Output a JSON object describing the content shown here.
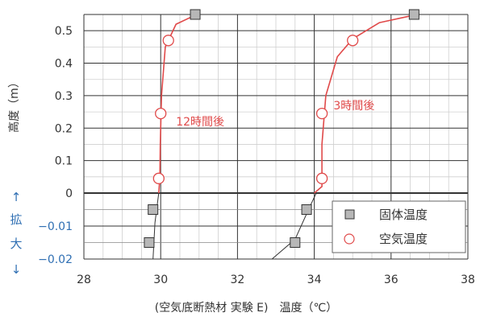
{
  "chart_data": {
    "type": "scatter",
    "title": "",
    "xlabel": "(空気底断熱材 実験 E)　温度（℃）",
    "ylabel": "高度（m）",
    "xlim": [
      28,
      38
    ],
    "ylim": [
      -0.02,
      0.55
    ],
    "x_ticks": [
      "28",
      "30",
      "32",
      "34",
      "36",
      "38"
    ],
    "y_ticks": [
      {
        "v": 0.5,
        "label": "0.5"
      },
      {
        "v": 0.4,
        "label": "0.4"
      },
      {
        "v": 0.3,
        "label": "0.3"
      },
      {
        "v": 0.2,
        "label": "0.2"
      },
      {
        "v": 0.1,
        "label": "0.1"
      },
      {
        "v": 0,
        "label": "0"
      },
      {
        "v": -0.01,
        "label": "−0.01"
      },
      {
        "v": -0.02,
        "label": "−0.02"
      }
    ],
    "expand_label": "拡大",
    "expand_up_arrow": "↑",
    "expand_down_arrow": "↓",
    "legend": {
      "position": "bottom-right",
      "solid": "固体温度",
      "air": "空気温度"
    },
    "series": [
      {
        "name": "固体温度",
        "points": [
          [
            29.8,
            -0.005
          ],
          [
            29.7,
            -0.015
          ],
          [
            30.9,
            0.55
          ],
          [
            33.5,
            -0.015
          ],
          [
            33.8,
            -0.005
          ],
          [
            36.6,
            0.55
          ]
        ]
      },
      {
        "name": "空気温度",
        "points": [
          [
            30.2,
            0.47
          ],
          [
            30.0,
            0.245
          ],
          [
            29.95,
            0.045
          ],
          [
            35.0,
            0.47
          ],
          [
            34.2,
            0.245
          ],
          [
            34.2,
            0.045
          ]
        ]
      }
    ],
    "curves": [
      {
        "points": [
          [
            29.95,
            0
          ],
          [
            29.98,
            0.05
          ],
          [
            29.99,
            0.15
          ],
          [
            30.02,
            0.3
          ],
          [
            30.12,
            0.45
          ],
          [
            30.4,
            0.52
          ],
          [
            30.9,
            0.548
          ]
        ]
      },
      {
        "points": [
          [
            34.0,
            0
          ],
          [
            34.2,
            0.02
          ],
          [
            34.2,
            0.15
          ],
          [
            34.3,
            0.3
          ],
          [
            34.6,
            0.42
          ],
          [
            35.0,
            0.475
          ],
          [
            35.7,
            0.525
          ],
          [
            36.6,
            0.548
          ]
        ]
      }
    ],
    "below_lines": [
      {
        "points": [
          [
            29.8,
            -0.02
          ],
          [
            29.85,
            -0.009
          ],
          [
            29.95,
            0
          ]
        ]
      },
      {
        "points": [
          [
            32.9,
            -0.02
          ],
          [
            33.5,
            -0.014
          ],
          [
            33.85,
            -0.005
          ],
          [
            34.05,
            0
          ]
        ]
      }
    ],
    "annotations": [
      {
        "text": "12時間後",
        "x": 30.4,
        "y": 0.22
      },
      {
        "text": "3時間後",
        "x": 34.5,
        "y": 0.27
      }
    ],
    "grid": true,
    "colors": {
      "solid_fill": "#b7b7b7",
      "air": "#e04a4a",
      "curve": "#e04a4a",
      "line": "#333333",
      "expand": "#2f6fb3"
    }
  }
}
